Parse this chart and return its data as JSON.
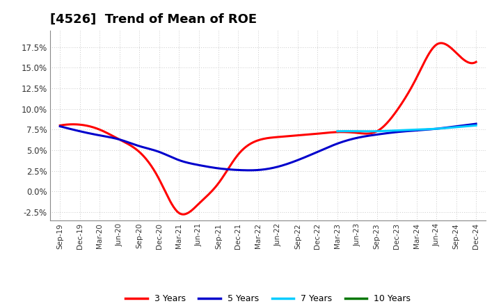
{
  "title": "[4526]  Trend of Mean of ROE",
  "background_color": "#ffffff",
  "plot_background_color": "#ffffff",
  "grid_color": "#999999",
  "title_fontsize": 13,
  "x_labels": [
    "Sep-19",
    "Dec-19",
    "Mar-20",
    "Jun-20",
    "Sep-20",
    "Dec-20",
    "Mar-21",
    "Jun-21",
    "Sep-21",
    "Dec-21",
    "Mar-22",
    "Jun-22",
    "Sep-22",
    "Dec-22",
    "Mar-23",
    "Jun-23",
    "Sep-23",
    "Dec-23",
    "Mar-24",
    "Jun-24",
    "Sep-24",
    "Dec-24"
  ],
  "series": {
    "3 Years": {
      "color": "#ff0000",
      "values": [
        0.08,
        0.081,
        0.075,
        0.063,
        0.048,
        0.015,
        -0.026,
        -0.015,
        0.01,
        0.045,
        0.062,
        0.066,
        0.068,
        0.07,
        0.072,
        0.071,
        0.073,
        0.098,
        0.138,
        0.178,
        0.168,
        0.157
      ]
    },
    "5 Years": {
      "color": "#0000cc",
      "values": [
        0.079,
        0.073,
        0.068,
        0.063,
        0.055,
        0.048,
        0.038,
        0.032,
        0.028,
        0.026,
        0.026,
        0.03,
        0.038,
        0.048,
        0.058,
        0.065,
        0.069,
        0.072,
        0.074,
        0.076,
        0.079,
        0.082
      ]
    },
    "7 Years": {
      "color": "#00ccff",
      "values": [
        null,
        null,
        null,
        null,
        null,
        null,
        null,
        null,
        null,
        null,
        null,
        null,
        null,
        null,
        0.073,
        0.073,
        0.073,
        0.074,
        0.075,
        0.076,
        0.078,
        0.08
      ]
    },
    "10 Years": {
      "color": "#007700",
      "values": [
        null,
        null,
        null,
        null,
        null,
        null,
        null,
        null,
        null,
        null,
        null,
        null,
        null,
        null,
        null,
        null,
        null,
        null,
        null,
        null,
        null,
        null
      ]
    }
  },
  "ylim": [
    -0.035,
    0.195
  ],
  "yticks": [
    -0.025,
    0.0,
    0.025,
    0.05,
    0.075,
    0.1,
    0.125,
    0.15,
    0.175
  ],
  "legend_labels": [
    "3 Years",
    "5 Years",
    "7 Years",
    "10 Years"
  ],
  "legend_colors": [
    "#ff0000",
    "#0000cc",
    "#00ccff",
    "#007700"
  ]
}
